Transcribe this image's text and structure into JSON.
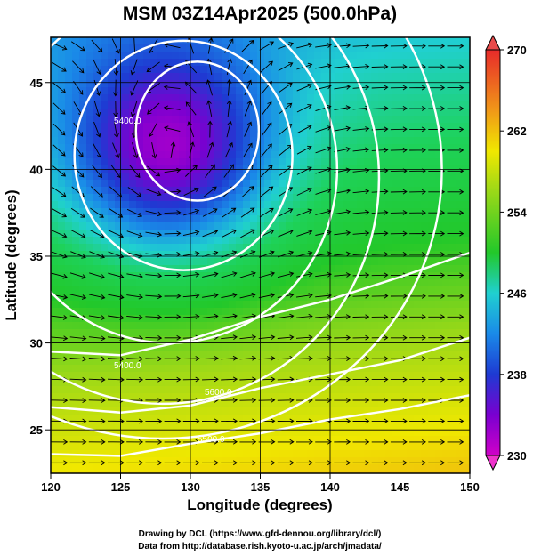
{
  "chart_data": {
    "type": "heatmap",
    "title": "MSM 03Z14Apr2025 (500.0hPa)",
    "xlabel": "Longitude (degrees)",
    "ylabel": "Latitude  (degrees)",
    "xlim": [
      120,
      150
    ],
    "ylim": [
      22.5,
      47.6
    ],
    "x_ticks": [
      120,
      125,
      130,
      135,
      140,
      145,
      150
    ],
    "y_ticks": [
      25,
      30,
      35,
      40,
      45
    ],
    "colorbar": {
      "min": 230,
      "max": 270,
      "ticks": [
        230,
        238,
        246,
        254,
        262,
        270
      ]
    },
    "low_center": {
      "lon": 128.5,
      "lat": 40.7,
      "value": 239
    },
    "contour_label": "5400.0",
    "contour_label_2": "5500.0",
    "contour_label_3": "5600.0",
    "contours": [
      {
        "value": 5400,
        "lon": 130.5,
        "lat": 42.2,
        "rx": 4.4,
        "ry": 4.0
      },
      {
        "value": 5500,
        "lon": 129.5,
        "lat": 40.8,
        "rx": 7.8,
        "ry": 6.6
      },
      {
        "value": 5600,
        "lon": 128.5,
        "lat": 40.0,
        "rx": 12.0,
        "ry": 10.0
      },
      {
        "value": 5700,
        "lon": 128.0,
        "lat": 39.5,
        "rx": 15.5,
        "ry": 13.0
      },
      {
        "value": 5800,
        "lon": 128.0,
        "lat": 40.0,
        "rx": 20.0,
        "ry": 15.5
      }
    ],
    "colors": {
      "min": "#cc00cc",
      "low": "#1e3ad2",
      "mid": "#22c82a",
      "warm": "#f0e800",
      "high": "#e84a1a",
      "max": "#e83a3a"
    }
  },
  "credits": {
    "line1": "Drawing by DCL (https://www.gfd-dennou.org/library/dcl/)",
    "line2": "Data from http://database.rish.kyoto-u.ac.jp/arch/jmadata/"
  }
}
